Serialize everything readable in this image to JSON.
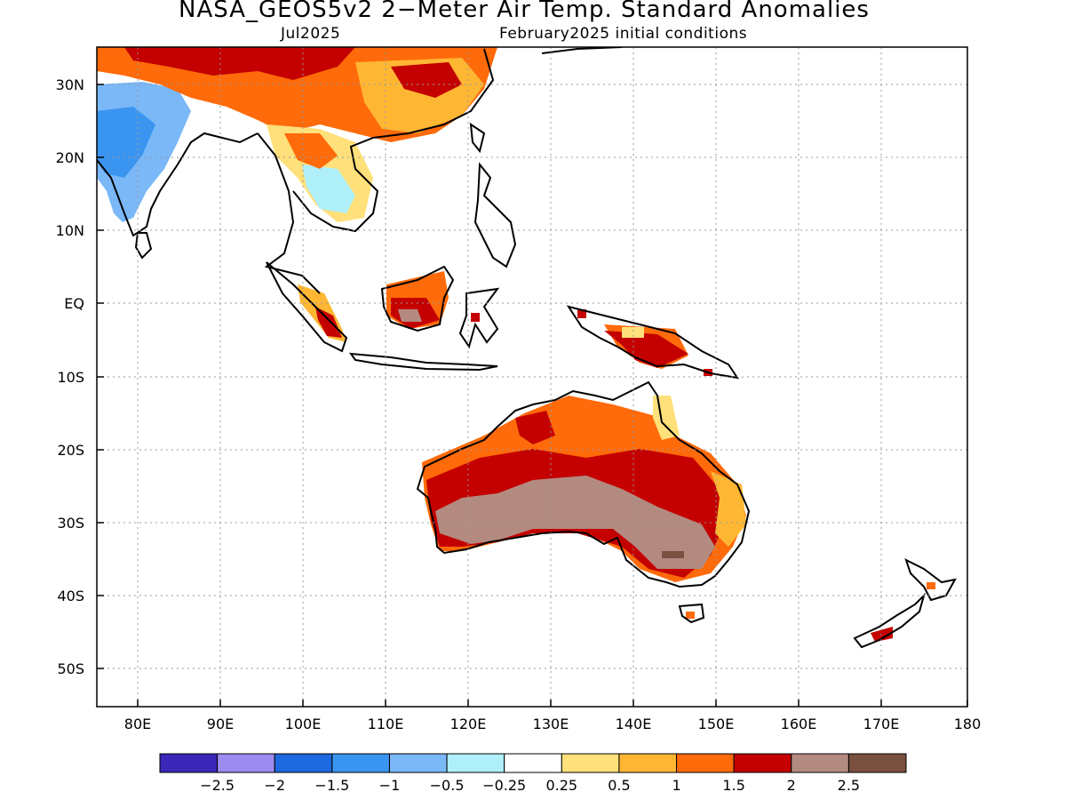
{
  "title": "NASA_GEOS5v2 2−Meter Air Temp. Standard Anomalies",
  "subtitle_left": "Jul2025",
  "subtitle_right": "February2025 initial conditions",
  "map": {
    "lon_range": [
      75,
      180
    ],
    "lat_range": [
      -55,
      35
    ],
    "x_ticks": [
      "80E",
      "90E",
      "100E",
      "110E",
      "120E",
      "130E",
      "140E",
      "150E",
      "160E",
      "170E",
      "180"
    ],
    "y_ticks": [
      "30N",
      "20N",
      "10N",
      "EQ",
      "10S",
      "20S",
      "30S",
      "40S",
      "50S"
    ]
  },
  "colorbar": {
    "colors": [
      "#3a27b8",
      "#9c8cf2",
      "#1e68e0",
      "#3a95f0",
      "#7ab8f7",
      "#aeeffa",
      "#ffffff",
      "#ffe07a",
      "#ffb733",
      "#ff6a0a",
      "#c40000",
      "#b38a80",
      "#7a5040"
    ],
    "labels": [
      "−2.5",
      "−2",
      "−1.5",
      "−1",
      "−0.5",
      "−0.25",
      "0.25",
      "0.5",
      "1",
      "1.5",
      "2",
      "2.5"
    ]
  }
}
